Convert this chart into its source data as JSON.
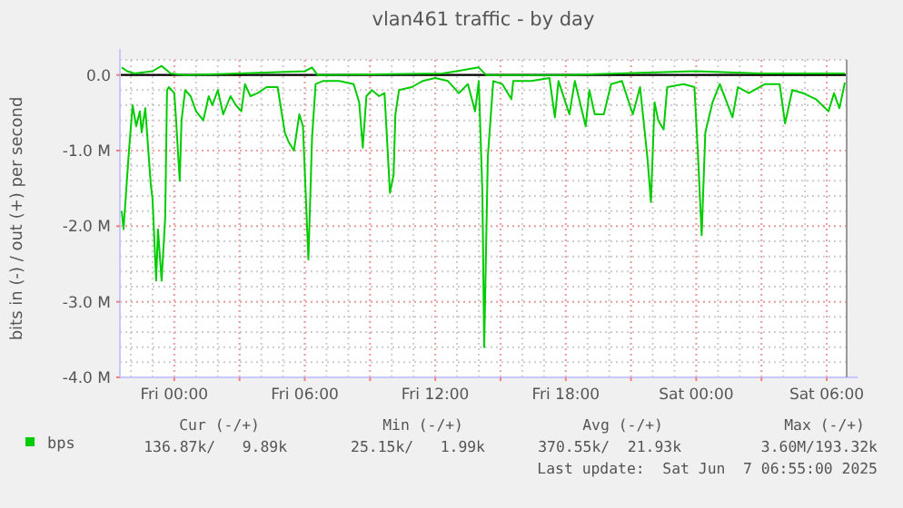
{
  "chart_data": {
    "type": "line",
    "title": "vlan461 traffic - by day",
    "ylabel": "bits in (-) / out (+) per second",
    "xlim": [
      "2025-06-05T21:30",
      "2025-06-07T06:55"
    ],
    "ylim": [
      -4,
      0.2
    ],
    "xticks": [
      {
        "value": "2025-06-06T00:00",
        "label": "Fri 00:00"
      },
      {
        "value": "2025-06-06T03:00",
        "label": null
      },
      {
        "value": "2025-06-06T06:00",
        "label": "Fri 06:00"
      },
      {
        "value": "2025-06-06T09:00",
        "label": null
      },
      {
        "value": "2025-06-06T12:00",
        "label": "Fri 12:00"
      },
      {
        "value": "2025-06-06T15:00",
        "label": null
      },
      {
        "value": "2025-06-06T18:00",
        "label": "Fri 18:00"
      },
      {
        "value": "2025-06-06T21:00",
        "label": null
      },
      {
        "value": "2025-06-07T00:00",
        "label": "Sat 00:00"
      },
      {
        "value": "2025-06-07T03:00",
        "label": null
      },
      {
        "value": "2025-06-07T06:00",
        "label": "Sat 06:00"
      }
    ],
    "yticks": [
      {
        "value": -4,
        "label": "-4.0 M"
      },
      {
        "value": -3,
        "label": "-3.0 M"
      },
      {
        "value": -2,
        "label": "-2.0 M"
      },
      {
        "value": -1,
        "label": "-1.0 M"
      },
      {
        "value": 0,
        "label": "0.0"
      }
    ],
    "grid": true,
    "legend": "bottom left",
    "marker": "none",
    "line_style": "solid",
    "ref_lines": [
      {
        "axis": "y",
        "value": 0,
        "color": "#000000"
      }
    ],
    "series": [
      {
        "name": "bps",
        "color": "#00cc00",
        "x": [
          "2025-06-05T21:35",
          "2025-06-05T21:40",
          "2025-06-05T21:55",
          "2025-06-05T22:05",
          "2025-06-05T22:15",
          "2025-06-05T22:25",
          "2025-06-05T22:30",
          "2025-06-05T22:40",
          "2025-06-05T22:55",
          "2025-06-05T23:00",
          "2025-06-05T23:10",
          "2025-06-05T23:15",
          "2025-06-05T23:25",
          "2025-06-05T23:35",
          "2025-06-05T23:40",
          "2025-06-05T23:45",
          "2025-06-06T00:00",
          "2025-06-06T00:05",
          "2025-06-06T00:15",
          "2025-06-06T00:20",
          "2025-06-06T00:30",
          "2025-06-06T00:45",
          "2025-06-06T01:00",
          "2025-06-06T01:20",
          "2025-06-06T01:35",
          "2025-06-06T01:45",
          "2025-06-06T02:00",
          "2025-06-06T02:15",
          "2025-06-06T02:35",
          "2025-06-06T02:50",
          "2025-06-06T03:05",
          "2025-06-06T03:15",
          "2025-06-06T03:30",
          "2025-06-06T03:50",
          "2025-06-06T04:15",
          "2025-06-06T04:45",
          "2025-06-06T05:05",
          "2025-06-06T05:15",
          "2025-06-06T05:30",
          "2025-06-06T05:45",
          "2025-06-06T05:55",
          "2025-06-06T06:10",
          "2025-06-06T06:20",
          "2025-06-06T06:30",
          "2025-06-06T06:50",
          "2025-06-06T07:35",
          "2025-06-06T08:15",
          "2025-06-06T08:30",
          "2025-06-06T08:40",
          "2025-06-06T08:50",
          "2025-06-06T09:05",
          "2025-06-06T09:25",
          "2025-06-06T09:40",
          "2025-06-06T09:55",
          "2025-06-06T10:05",
          "2025-06-06T10:10",
          "2025-06-06T10:20",
          "2025-06-06T10:55",
          "2025-06-06T11:25",
          "2025-06-06T12:00",
          "2025-06-06T12:35",
          "2025-06-06T13:05",
          "2025-06-06T13:30",
          "2025-06-06T13:50",
          "2025-06-06T14:00",
          "2025-06-06T14:10",
          "2025-06-06T14:15",
          "2025-06-06T14:25",
          "2025-06-06T14:40",
          "2025-06-06T15:05",
          "2025-06-06T15:30",
          "2025-06-06T15:35",
          "2025-06-06T16:25",
          "2025-06-06T17:15",
          "2025-06-06T17:30",
          "2025-06-06T17:40",
          "2025-06-06T18:10",
          "2025-06-06T18:25",
          "2025-06-06T18:55",
          "2025-06-06T19:05",
          "2025-06-06T19:20",
          "2025-06-06T19:45",
          "2025-06-06T20:05",
          "2025-06-06T20:35",
          "2025-06-06T21:05",
          "2025-06-06T21:25",
          "2025-06-06T21:45",
          "2025-06-06T21:55",
          "2025-06-06T22:05",
          "2025-06-06T22:15",
          "2025-06-06T22:30",
          "2025-06-06T22:40",
          "2025-06-06T23:25",
          "2025-06-06T23:55",
          "2025-06-07T00:05",
          "2025-06-07T00:15",
          "2025-06-07T00:25",
          "2025-06-07T00:45",
          "2025-06-07T01:05",
          "2025-06-07T01:40",
          "2025-06-07T01:55",
          "2025-06-07T02:25",
          "2025-06-07T03:10",
          "2025-06-07T03:50",
          "2025-06-07T04:05",
          "2025-06-07T04:25",
          "2025-06-07T04:55",
          "2025-06-07T05:30",
          "2025-06-07T06:05",
          "2025-06-07T06:20",
          "2025-06-07T06:35",
          "2025-06-07T06:50"
        ],
        "values": [
          -1.8,
          -2.04,
          -1.0,
          -0.4,
          -0.68,
          -0.48,
          -0.76,
          -0.44,
          -1.44,
          -1.64,
          -2.72,
          -2.04,
          -2.72,
          -1.88,
          -0.2,
          -0.16,
          -0.24,
          -0.6,
          -1.4,
          -0.6,
          -0.2,
          -0.28,
          -0.48,
          -0.6,
          -0.28,
          -0.4,
          -0.2,
          -0.52,
          -0.28,
          -0.4,
          -0.48,
          -0.12,
          -0.28,
          -0.24,
          -0.16,
          -0.16,
          -0.76,
          -0.88,
          -1.0,
          -0.52,
          -0.68,
          -2.44,
          -0.84,
          -0.12,
          -0.08,
          -0.08,
          -0.12,
          -0.36,
          -0.96,
          -0.28,
          -0.2,
          -0.28,
          -0.24,
          -1.56,
          -1.32,
          -0.52,
          -0.2,
          -0.16,
          -0.08,
          -0.04,
          -0.08,
          -0.24,
          -0.12,
          -0.48,
          -0.08,
          -1.56,
          -3.6,
          -1.08,
          -0.08,
          -0.12,
          -0.32,
          -0.08,
          -0.08,
          -0.04,
          -0.56,
          -0.08,
          -0.52,
          -0.08,
          -0.68,
          -0.2,
          -0.52,
          -0.52,
          -0.12,
          -0.08,
          -0.52,
          -0.16,
          -1.08,
          -1.68,
          -0.36,
          -0.6,
          -0.72,
          -0.16,
          -0.12,
          -0.16,
          -1.08,
          -2.12,
          -0.76,
          -0.36,
          -0.12,
          -0.56,
          -0.16,
          -0.24,
          -0.12,
          -0.12,
          -0.64,
          -0.2,
          -0.24,
          -0.32,
          -0.48,
          -0.24,
          -0.44,
          -0.1
        ]
      },
      {
        "color": "#00cc00",
        "x": [
          "2025-06-05T21:35",
          "2025-06-05T21:50",
          "2025-06-05T22:10",
          "2025-06-05T23:00",
          "2025-06-05T23:25",
          "2025-06-05T23:35",
          "2025-06-05T23:50",
          "2025-06-06T00:30",
          "2025-06-06T03:00",
          "2025-06-06T06:00",
          "2025-06-06T06:20",
          "2025-06-06T06:35",
          "2025-06-06T12:20",
          "2025-06-06T14:00",
          "2025-06-06T14:20",
          "2025-06-06T18:00",
          "2025-06-07T00:00",
          "2025-06-07T03:00",
          "2025-06-07T06:50"
        ],
        "values": [
          0.1,
          0.05,
          0.02,
          0.05,
          0.12,
          0.08,
          0.02,
          0,
          0.02,
          0.05,
          0.1,
          0,
          0.02,
          0.1,
          0,
          0,
          0.05,
          0.02,
          0.02
        ]
      }
    ],
    "annotations": [
      "Cur (-/+)",
      "Min (-/+)",
      "Avg (-/+)",
      "Max (-/+)",
      "136.87k/   9.89k",
      "25.15k/   1.99k",
      "370.55k/  21.93k",
      "3.60M/193.32k",
      "Last update:  Sat Jun  7 06:55:00 2025"
    ]
  }
}
